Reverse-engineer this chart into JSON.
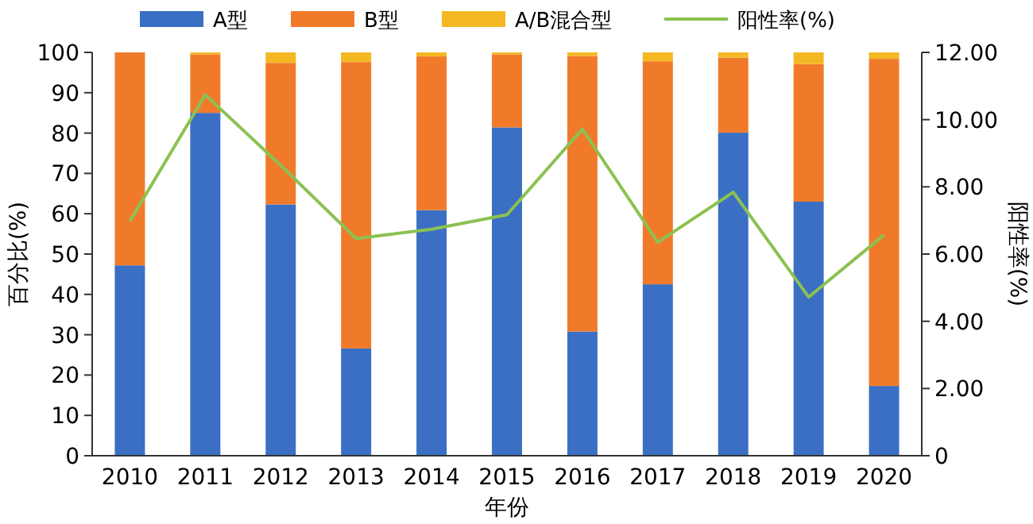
{
  "chart_data": {
    "type": "bar",
    "stacked": true,
    "xlabel": "年份",
    "ylabel": "百分比(%)",
    "y2label": "阳性率(%)",
    "categories": [
      "2010",
      "2011",
      "2012",
      "2013",
      "2014",
      "2015",
      "2016",
      "2017",
      "2018",
      "2019",
      "2020"
    ],
    "series": [
      {
        "name": "A型",
        "color": "#3a6fc4",
        "values": [
          47.2,
          85.0,
          62.3,
          26.6,
          60.9,
          81.4,
          30.8,
          42.5,
          80.1,
          63.0,
          17.3
        ]
      },
      {
        "name": "B型",
        "color": "#f07a2a",
        "values": [
          52.8,
          14.5,
          35.1,
          71.0,
          38.1,
          18.1,
          68.3,
          55.3,
          18.6,
          34.1,
          81.1
        ]
      },
      {
        "name": "A/B混合型",
        "color": "#f4b822",
        "values": [
          0,
          0.5,
          2.6,
          2.4,
          1.0,
          0.5,
          0.9,
          2.2,
          1.3,
          2.9,
          1.6
        ]
      },
      {
        "name": "阳性率(%)",
        "type": "line",
        "axis": "y2",
        "color": "#8cc152",
        "values": [
          6.98,
          10.74,
          8.64,
          6.46,
          6.74,
          7.17,
          9.72,
          6.35,
          7.84,
          4.72,
          6.57
        ]
      }
    ],
    "ylim": [
      0,
      100
    ],
    "yticks": [
      0,
      10,
      20,
      30,
      40,
      50,
      60,
      70,
      80,
      90,
      100
    ],
    "y2lim": [
      0,
      12
    ],
    "y2ticks": [
      0,
      {
        "value": 2,
        "label": "2.00"
      },
      {
        "value": 4,
        "label": "4.00"
      },
      {
        "value": 6,
        "label": "6.00"
      },
      {
        "value": 8,
        "label": "8.00"
      },
      {
        "value": 10,
        "label": "10.00"
      },
      {
        "value": 12,
        "label": "12.00"
      }
    ],
    "legend": "top",
    "grid": false,
    "marker": "none",
    "line_style": "solid"
  }
}
